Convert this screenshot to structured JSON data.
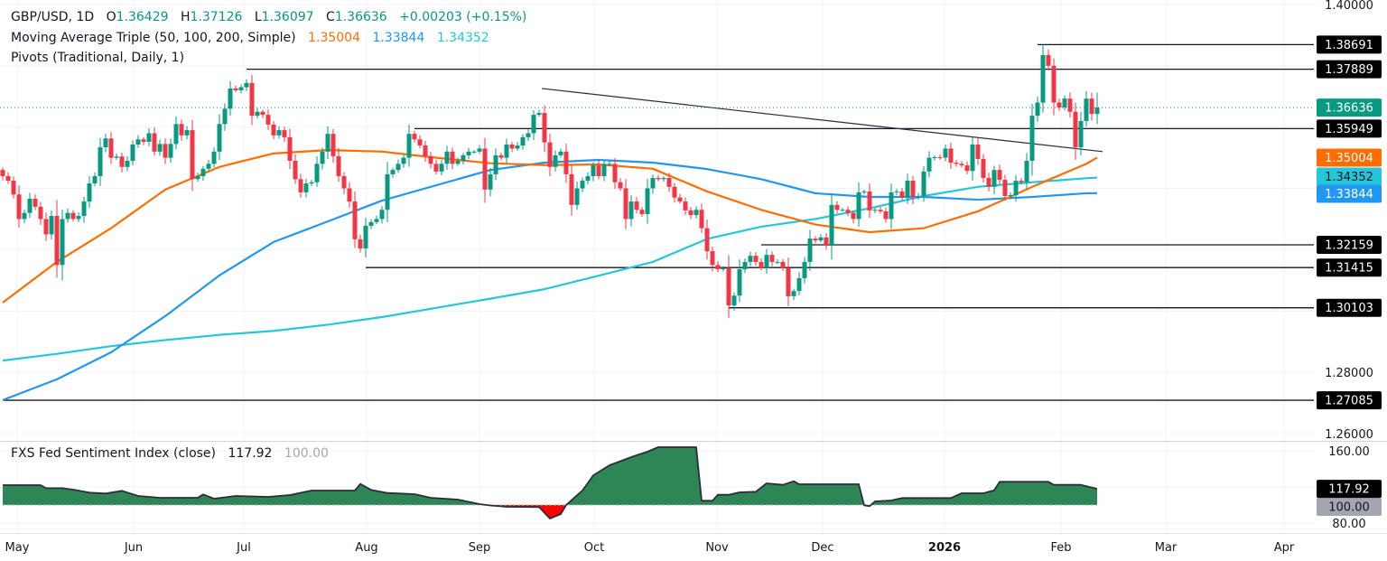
{
  "header": {
    "symbol": "GBP/USD, 1D",
    "o_label": "O",
    "o": "1.36429",
    "h_label": "H",
    "h": "1.37126",
    "l_label": "L",
    "l": "1.36097",
    "c_label": "C",
    "c": "1.36636",
    "change": "+0.00203 (+0.15%)"
  },
  "ma_legend": {
    "title": "Moving Average Triple (50, 100, 200, Simple)",
    "ma50": "1.35004",
    "ma100": "1.33844",
    "ma200": "1.34352"
  },
  "pivots_legend": "Pivots (Traditional, Daily, 1)",
  "sentiment_legend": {
    "title": "FXS Fed Sentiment Index (close)",
    "value": "117.92",
    "baseline": "100.00"
  },
  "colors": {
    "up": "#089981",
    "down": "#f23645",
    "ma50": "#ff6d00",
    "ma100": "#2196f3",
    "ma200": "#26c6da",
    "pivot": "#131722",
    "sentiment_above": "#2e8555",
    "sentiment_below": "#ff0000"
  },
  "chart_data": {
    "type": "candlestick",
    "symbol": "GBP/USD",
    "interval": "1D",
    "price_range": [
      1.255,
      1.402
    ],
    "grid": true,
    "last_bar": {
      "open": 1.36429,
      "high": 1.37126,
      "low": 1.36097,
      "close": 1.36636
    },
    "first_open": 1.346,
    "closes": [
      1.344,
      1.3425,
      1.338,
      1.33,
      1.332,
      1.3366,
      1.334,
      1.33,
      1.325,
      1.331,
      1.315,
      1.33,
      1.332,
      1.33,
      1.331,
      1.3357,
      1.3416,
      1.344,
      1.3534,
      1.3563,
      1.35,
      1.3504,
      1.347,
      1.349,
      1.3543,
      1.356,
      1.3552,
      1.358,
      1.352,
      1.3545,
      1.35,
      1.3545,
      1.361,
      1.3573,
      1.359,
      1.343,
      1.344,
      1.3464,
      1.348,
      1.352,
      1.361,
      1.366,
      1.3726,
      1.372,
      1.373,
      1.3744,
      1.3637,
      1.365,
      1.364,
      1.3608,
      1.3573,
      1.359,
      1.3567,
      1.349,
      1.343,
      1.3387,
      1.3416,
      1.342,
      1.348,
      1.352,
      1.3578,
      1.3505,
      1.344,
      1.34,
      1.3357,
      1.3234,
      1.3204,
      1.3278,
      1.329,
      1.33,
      1.333,
      1.3446,
      1.346,
      1.348,
      1.35,
      1.3578,
      1.356,
      1.354,
      1.3505,
      1.348,
      1.3455,
      1.348,
      1.352,
      1.348,
      1.349,
      1.3508,
      1.352,
      1.352,
      1.353,
      1.3396,
      1.3446,
      1.3508,
      1.35,
      1.3543,
      1.353,
      1.354,
      1.3567,
      1.358,
      1.364,
      1.3646,
      1.355,
      1.347,
      1.3508,
      1.352,
      1.3446,
      1.3346,
      1.34,
      1.3425,
      1.344,
      1.3475,
      1.344,
      1.348,
      1.348,
      1.342,
      1.34,
      1.33,
      1.3357,
      1.333,
      1.3316,
      1.34,
      1.3434,
      1.343,
      1.3434,
      1.3405,
      1.337,
      1.3357,
      1.3328,
      1.3313,
      1.333,
      1.327,
      1.3195,
      1.315,
      1.3136,
      1.314,
      1.3018,
      1.305,
      1.3136,
      1.316,
      1.318,
      1.316,
      1.314,
      1.3183,
      1.316,
      1.316,
      1.314,
      1.3048,
      1.3065,
      1.3107,
      1.316,
      1.3236,
      1.323,
      1.324,
      1.3213,
      1.3346,
      1.333,
      1.333,
      1.332,
      1.33,
      1.3387,
      1.339,
      1.3328,
      1.333,
      1.3325,
      1.33,
      1.3387,
      1.339,
      1.337,
      1.3425,
      1.3372,
      1.3375,
      1.3455,
      1.35,
      1.3502,
      1.35,
      1.353,
      1.3484,
      1.348,
      1.3475,
      1.3457,
      1.3543,
      1.3496,
      1.3434,
      1.3405,
      1.346,
      1.3428,
      1.3375,
      1.3378,
      1.3425,
      1.342,
      1.349,
      1.3637,
      1.368,
      1.3835,
      1.38,
      1.368,
      1.3664,
      1.3693,
      1.365,
      1.3534,
      1.362,
      1.3693,
      1.3643,
      1.36636
    ],
    "moving_averages": {
      "sample_bars": [
        0,
        10,
        20,
        30,
        40,
        50,
        60,
        70,
        80,
        90,
        100,
        110,
        120,
        130,
        140,
        150,
        160,
        170,
        180,
        190,
        200,
        202
      ],
      "ma50": [
        1.3027,
        1.316,
        1.327,
        1.3396,
        1.347,
        1.3514,
        1.3525,
        1.352,
        1.35,
        1.3482,
        1.3476,
        1.3478,
        1.3464,
        1.339,
        1.333,
        1.3282,
        1.3257,
        1.327,
        1.3325,
        1.3405,
        1.348,
        1.35004
      ],
      "ma100": [
        1.2709,
        1.2777,
        1.2865,
        1.2983,
        1.3116,
        1.3225,
        1.3292,
        1.336,
        1.341,
        1.346,
        1.3484,
        1.3493,
        1.3484,
        1.3463,
        1.343,
        1.3384,
        1.3372,
        1.3372,
        1.3363,
        1.3372,
        1.3384,
        1.33844
      ],
      "ma200": [
        1.2838,
        1.286,
        1.2885,
        1.2905,
        1.2922,
        1.2935,
        1.2955,
        1.298,
        1.301,
        1.304,
        1.3071,
        1.3115,
        1.316,
        1.3235,
        1.3275,
        1.33,
        1.3335,
        1.3375,
        1.3405,
        1.342,
        1.3433,
        1.34352
      ]
    },
    "pivots": [
      {
        "value": 1.38691,
        "label": "1.38691",
        "from_bar": 191
      },
      {
        "value": 1.37889,
        "label": "1.37889",
        "from_bar": 45
      },
      {
        "value": 1.35949,
        "label": "1.35949",
        "from_bar": 76
      },
      {
        "value": 1.32159,
        "label": "1.32159",
        "from_bar": 140
      },
      {
        "value": 1.31415,
        "label": "1.31415",
        "from_bar": 67
      },
      {
        "value": 1.30103,
        "label": "1.30103",
        "from_bar": 134
      },
      {
        "value": 1.27085,
        "label": "1.27085",
        "from_bar": 0
      }
    ],
    "trendline": {
      "from": {
        "bar": 99.5,
        "price": 1.3726
      },
      "to": {
        "bar": 203,
        "price": 1.352
      }
    },
    "current_price": {
      "value": 1.36636,
      "label": "1.36636"
    },
    "ma_badges": [
      {
        "key": "ma50",
        "value": 1.35004,
        "label": "1.35004"
      },
      {
        "key": "ma200",
        "value": 1.34352,
        "label": "1.34352"
      },
      {
        "key": "ma100",
        "value": 1.33844,
        "label": "1.33844"
      }
    ],
    "price_ticks": [
      {
        "value": 1.4,
        "label": "1.40000"
      },
      {
        "value": 1.28,
        "label": "1.28000"
      },
      {
        "value": 1.26,
        "label": "1.26000"
      }
    ],
    "sentiment": {
      "baseline": 100,
      "range": [
        70,
        172
      ],
      "ticks": [
        {
          "value": 160,
          "label": "160.00"
        },
        {
          "value": 80,
          "label": "80.00"
        }
      ],
      "last": {
        "value": 117.92,
        "label": "117.92"
      },
      "baseline_label": "100.00",
      "points": [
        [
          0,
          122
        ],
        [
          7,
          122
        ],
        [
          8,
          118.6
        ],
        [
          11,
          118.6
        ],
        [
          13,
          117
        ],
        [
          16,
          113.7
        ],
        [
          19,
          112.7
        ],
        [
          22,
          115.7
        ],
        [
          25,
          110
        ],
        [
          29,
          108
        ],
        [
          36,
          108
        ],
        [
          37,
          111.7
        ],
        [
          39,
          107
        ],
        [
          43,
          110
        ],
        [
          49,
          109
        ],
        [
          53,
          111
        ],
        [
          57,
          116
        ],
        [
          65,
          116
        ],
        [
          66,
          123.3
        ],
        [
          68,
          116.7
        ],
        [
          71,
          113.3
        ],
        [
          76,
          112
        ],
        [
          79,
          108
        ],
        [
          84,
          106
        ],
        [
          88,
          101
        ],
        [
          90,
          99.5
        ],
        [
          93,
          98
        ],
        [
          99,
          97.7
        ],
        [
          101,
          85
        ],
        [
          103,
          90
        ],
        [
          104,
          100
        ],
        [
          107,
          116
        ],
        [
          109,
          132.7
        ],
        [
          112,
          144
        ],
        [
          116,
          153
        ],
        [
          119,
          159
        ],
        [
          121,
          164
        ],
        [
          128,
          164
        ],
        [
          129,
          104.7
        ],
        [
          131,
          104.7
        ],
        [
          132,
          111.3
        ],
        [
          134,
          111.3
        ],
        [
          136,
          114
        ],
        [
          139,
          114.7
        ],
        [
          141,
          124
        ],
        [
          144,
          122.3
        ],
        [
          146,
          126.3
        ],
        [
          147,
          123
        ],
        [
          158,
          123
        ],
        [
          159,
          99.7
        ],
        [
          160,
          98.7
        ],
        [
          161,
          104
        ],
        [
          164,
          105
        ],
        [
          166,
          107.7
        ],
        [
          175,
          107.7
        ],
        [
          177,
          113
        ],
        [
          181,
          113
        ],
        [
          183,
          116.3
        ],
        [
          184,
          125.7
        ],
        [
          193,
          125.7
        ],
        [
          194,
          122.3
        ],
        [
          199,
          122.3
        ],
        [
          202,
          117.92
        ]
      ]
    },
    "time_axis": [
      "May",
      "Jun",
      "Jul",
      "Aug",
      "Sep",
      "Oct",
      "Nov",
      "Dec",
      "2026",
      "Feb",
      "Mar",
      "Apr"
    ]
  }
}
